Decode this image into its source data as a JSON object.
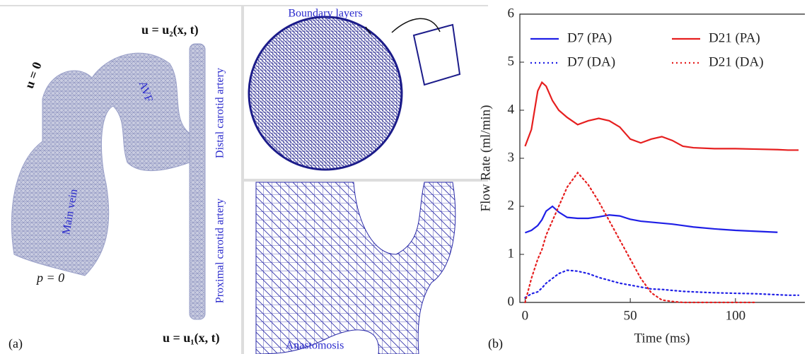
{
  "figure": {
    "panel_a": "(a)",
    "outlet_top": "u = u₂(x, t)",
    "outlet_vein": "u = 0",
    "inlet": "u = u₁(x, t)",
    "pressure": "p = 0",
    "avf": "AVF",
    "distal": "Distal carotid artery",
    "proximal": "Proximal carotid artery",
    "main_vein": "Main vein",
    "boundary_layers": "Boundary layers",
    "anastomosis": "Anastomosis"
  },
  "chart_data": {
    "type": "line",
    "panel_label": "(b)",
    "xlabel": "Time (ms)",
    "ylabel": "Flow Rate (ml/min)",
    "xlim": [
      -2.5,
      133
    ],
    "ylim": [
      0,
      6
    ],
    "xticks": [
      0,
      50,
      100
    ],
    "yticks": [
      0,
      1,
      2,
      3,
      4,
      5,
      6
    ],
    "x": [
      0,
      3,
      6,
      8,
      10,
      13,
      16,
      20,
      25,
      30,
      35,
      40,
      45,
      50,
      55,
      60,
      65,
      70,
      75,
      80,
      90,
      100,
      110,
      120,
      125,
      130
    ],
    "series": [
      {
        "name": "D7 (PA)",
        "color": "#1f1fe6",
        "style": "solid",
        "values": [
          1.45,
          1.5,
          1.6,
          1.72,
          1.9,
          2.0,
          1.88,
          1.77,
          1.75,
          1.75,
          1.78,
          1.82,
          1.8,
          1.73,
          1.69,
          1.67,
          1.65,
          1.63,
          1.6,
          1.57,
          1.53,
          1.5,
          1.48,
          1.46,
          null,
          null
        ]
      },
      {
        "name": "D21 (PA)",
        "color": "#e61f1f",
        "style": "solid",
        "values": [
          3.25,
          3.6,
          4.4,
          4.58,
          4.5,
          4.2,
          4.0,
          3.85,
          3.7,
          3.78,
          3.83,
          3.78,
          3.65,
          3.4,
          3.32,
          3.4,
          3.45,
          3.37,
          3.25,
          3.22,
          3.2,
          3.2,
          3.19,
          3.18,
          3.17,
          3.17
        ]
      },
      {
        "name": "D7 (DA)",
        "color": "#1f1fe6",
        "style": "dotted",
        "values": [
          0.1,
          0.18,
          0.22,
          0.3,
          0.4,
          0.5,
          0.6,
          0.67,
          0.65,
          0.6,
          0.52,
          0.46,
          0.4,
          0.36,
          0.32,
          0.28,
          0.27,
          0.25,
          0.23,
          0.22,
          0.2,
          0.19,
          0.18,
          0.16,
          0.15,
          0.15
        ]
      },
      {
        "name": "D21 (DA)",
        "color": "#e61f1f",
        "style": "dotted",
        "values": [
          0,
          0.5,
          0.9,
          1.1,
          1.4,
          1.7,
          2.0,
          2.4,
          2.7,
          2.45,
          2.1,
          1.7,
          1.3,
          0.9,
          0.5,
          0.2,
          0.05,
          0.02,
          0,
          0,
          0,
          0,
          0,
          null,
          null,
          null
        ]
      }
    ]
  }
}
